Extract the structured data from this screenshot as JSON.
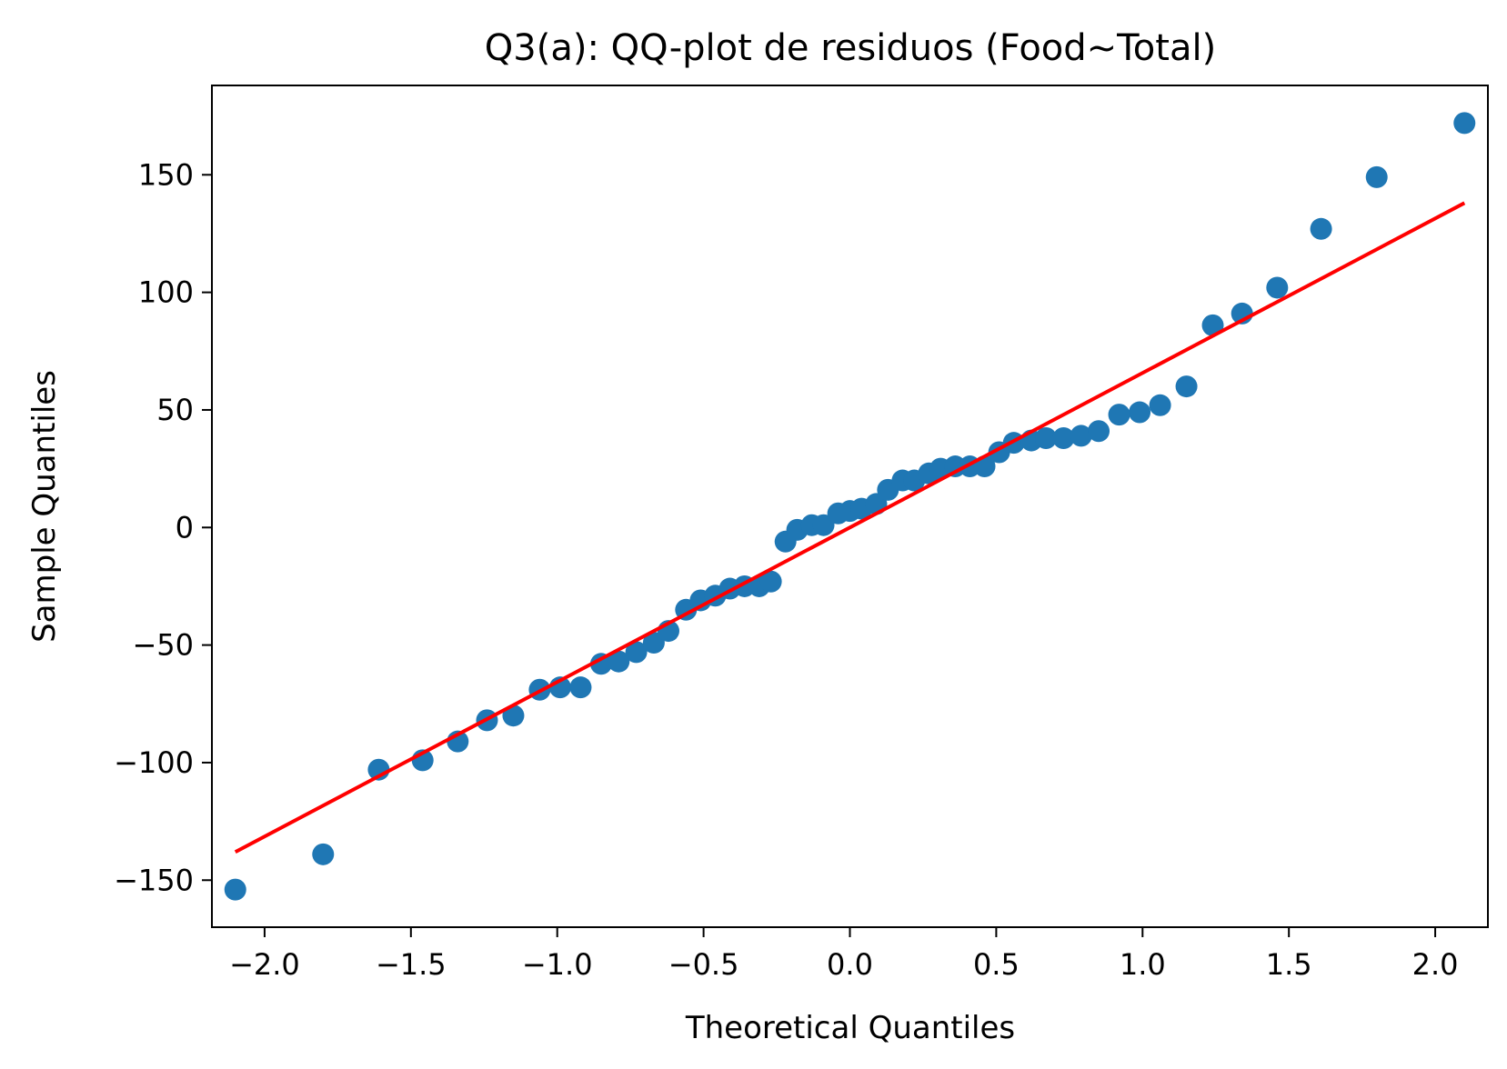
{
  "chart_data": {
    "type": "scatter",
    "title": "Q3(a): QQ-plot de residuos (Food~Total)",
    "xlabel": "Theoretical Quantiles",
    "ylabel": "Sample Quantiles",
    "xlim": [
      -2.18,
      2.18
    ],
    "ylim": [
      -170,
      188
    ],
    "x_ticks": [
      -2.0,
      -1.5,
      -1.0,
      -0.5,
      0.0,
      0.5,
      1.0,
      1.5,
      2.0
    ],
    "x_tick_labels": [
      "−2.0",
      "−1.5",
      "−1.0",
      "−0.5",
      "0.0",
      "0.5",
      "1.0",
      "1.5",
      "2.0"
    ],
    "y_ticks": [
      -150,
      -100,
      -50,
      0,
      50,
      100,
      150
    ],
    "y_tick_labels": [
      "−150",
      "−100",
      "−50",
      "0",
      "50",
      "100",
      "150"
    ],
    "grid": false,
    "colors": {
      "points": "#1f77b4",
      "line": "#ff0000"
    },
    "series": [
      {
        "kind": "points",
        "x": [
          -2.1,
          -1.8,
          -1.61,
          -1.46,
          -1.34,
          -1.24,
          -1.15,
          -1.06,
          -0.99,
          -0.92,
          -0.85,
          -0.79,
          -0.73,
          -0.67,
          -0.62,
          -0.56,
          -0.51,
          -0.46,
          -0.41,
          -0.36,
          -0.31,
          -0.27,
          -0.22,
          -0.18,
          -0.13,
          -0.09,
          -0.04,
          0.0,
          0.04,
          0.09,
          0.13,
          0.18,
          0.22,
          0.27,
          0.31,
          0.36,
          0.41,
          0.46,
          0.51,
          0.56,
          0.62,
          0.67,
          0.73,
          0.79,
          0.85,
          0.92,
          0.99,
          1.06,
          1.15,
          1.24,
          1.34,
          1.46,
          1.61,
          1.8,
          2.1
        ],
        "y": [
          -154,
          -139,
          -103,
          -99,
          -91,
          -82,
          -80,
          -69,
          -68,
          -68,
          -58,
          -57,
          -53,
          -49,
          -44,
          -35,
          -31,
          -29,
          -26,
          -25,
          -25,
          -23,
          -6,
          -1,
          1,
          1,
          6,
          7,
          8,
          10,
          16,
          20,
          20,
          23,
          25,
          26,
          26,
          26,
          32,
          36,
          37,
          38,
          38,
          39,
          41,
          48,
          49,
          52,
          60,
          86,
          91,
          102,
          127,
          149,
          172
        ]
      },
      {
        "kind": "line",
        "x": [
          -2.1,
          2.1
        ],
        "y": [
          -138,
          138
        ]
      }
    ]
  }
}
